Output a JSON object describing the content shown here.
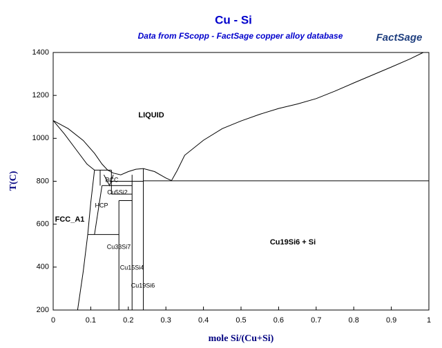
{
  "chart_data": {
    "type": "line",
    "title": "Cu - Si",
    "subtitle": "Data from FScopp - FactSage copper alloy database",
    "logo": "FactSage",
    "x_label": "mole Si/(Cu+Si)",
    "y_label": "T(C)",
    "xlim": [
      0,
      1
    ],
    "ylim": [
      200,
      1400
    ],
    "xticks": [
      0,
      0.1,
      0.2,
      0.3,
      0.4,
      0.5,
      0.6,
      0.7,
      0.8,
      0.9,
      1
    ],
    "yticks": [
      200,
      400,
      600,
      800,
      1000,
      1200,
      1400
    ],
    "annotations": [
      "LIQUID",
      "FCC_A1",
      "BCC",
      "Cu5Si2",
      "HCP",
      "Cu33Si7",
      "Cu15Si4",
      "Cu19Si6",
      "Cu19Si6 + Si"
    ],
    "series": [
      {
        "color": "#000000",
        "x": [
          0,
          0.04,
          0.08,
          0.11,
          0.13,
          0.145,
          0.16,
          0.18,
          0.2,
          0.22,
          0.24,
          0.27,
          0.3,
          0.315
        ],
        "values": [
          1083,
          1045,
          990,
          930,
          880,
          852,
          838,
          830,
          845,
          856,
          859,
          845,
          815,
          803
        ]
      },
      {
        "color": "#000000",
        "x": [
          0.315,
          0.33,
          0.35,
          0.4,
          0.45,
          0.5,
          0.55,
          0.6,
          0.65,
          0.7,
          0.75,
          0.8,
          0.85,
          0.9,
          0.95,
          0.985
        ],
        "values": [
          803,
          850,
          921,
          991,
          1045,
          1081,
          1112,
          1139,
          1160,
          1185,
          1220,
          1258,
          1295,
          1332,
          1370,
          1400
        ]
      },
      {
        "color": "#000000",
        "x": [
          0,
          0.03,
          0.06,
          0.09,
          0.11
        ],
        "values": [
          1083,
          1020,
          950,
          880,
          852
        ]
      },
      {
        "color": "#000000",
        "x": [
          0.11,
          0.155
        ],
        "values": [
          852,
          852
        ]
      },
      {
        "color": "#000000",
        "x": [
          0.065,
          0.08,
          0.092,
          0.1,
          0.11
        ],
        "values": [
          200,
          380,
          552,
          700,
          852
        ]
      },
      {
        "color": "#000000",
        "x": [
          0.092,
          0.175
        ],
        "values": [
          552,
          552
        ]
      },
      {
        "color": "#000000",
        "x": [
          0.11,
          0.13
        ],
        "values": [
          552,
          780
        ]
      },
      {
        "color": "#000000",
        "x": [
          0.125,
          0.125
        ],
        "values": [
          780,
          852
        ]
      },
      {
        "color": "#000000",
        "x": [
          0.135,
          0.15,
          0.16
        ],
        "values": [
          830,
          780,
          830
        ]
      },
      {
        "color": "#000000",
        "x": [
          0.13,
          0.21
        ],
        "values": [
          780,
          780
        ]
      },
      {
        "color": "#000000",
        "x": [
          0.15,
          0.24
        ],
        "values": [
          800,
          800
        ]
      },
      {
        "color": "#000000",
        "x": [
          0.155,
          0.155
        ],
        "values": [
          740,
          852
        ]
      },
      {
        "color": "#000000",
        "x": [
          0.155,
          0.21
        ],
        "values": [
          740,
          740
        ]
      },
      {
        "color": "#000000",
        "x": [
          0.175,
          0.175
        ],
        "values": [
          200,
          710
        ]
      },
      {
        "color": "#000000",
        "x": [
          0.175,
          0.21
        ],
        "values": [
          710,
          710
        ]
      },
      {
        "color": "#000000",
        "x": [
          0.21,
          0.21
        ],
        "values": [
          200,
          830
        ]
      },
      {
        "color": "#000000",
        "x": [
          0.24,
          0.24
        ],
        "values": [
          200,
          859
        ]
      },
      {
        "color": "#000000",
        "x": [
          0.24,
          1
        ],
        "values": [
          802,
          802
        ]
      }
    ]
  }
}
